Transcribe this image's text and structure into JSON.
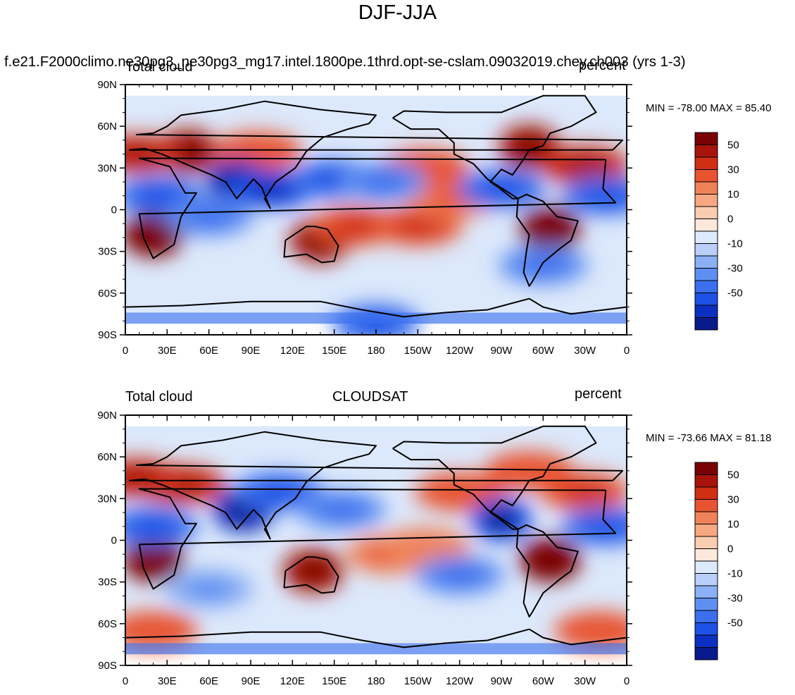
{
  "figure": {
    "title": "DJF-JJA",
    "case_title": "f.e21.F2000climo.ne30pg3_ne30pg3_mg17.intel.1800pe.1thrd.opt-se-cslam.09032019.chey.ch003 (yrs 1-3)"
  },
  "chart_data": [
    {
      "type": "heatmap",
      "panel": "top",
      "left_label": "Total cloud",
      "center_label": "",
      "right_label": "percent",
      "min_max_text": "MIN = -78.00 MAX =  85.40",
      "min": -78.0,
      "max": 85.4,
      "x_ticks": [
        "0",
        "30E",
        "60E",
        "90E",
        "120E",
        "150E",
        "180",
        "150W",
        "120W",
        "90W",
        "60W",
        "30W",
        "0"
      ],
      "y_ticks": [
        "90N",
        "60N",
        "30N",
        "0",
        "30S",
        "60S",
        "90S"
      ],
      "xlim": [
        0,
        360
      ],
      "ylim": [
        -90,
        90
      ],
      "colorbar_labels": [
        "50",
        "30",
        "10",
        "0",
        "-10",
        "-30",
        "-50"
      ],
      "colorbar_levels": [
        -60,
        -50,
        -40,
        -30,
        -20,
        -10,
        -5,
        0,
        5,
        10,
        20,
        30,
        40,
        50,
        60
      ],
      "colorbar_colors": [
        "#0a1a8c",
        "#0b2fc2",
        "#1e52e6",
        "#3a6fee",
        "#5f8ff2",
        "#8cb0f5",
        "#b9cffa",
        "#ddeafc",
        "#fde9dc",
        "#fbcdb0",
        "#f7a882",
        "#f08259",
        "#e85430",
        "#cf2f13",
        "#a8140b",
        "#7a0205"
      ],
      "features": [
        {
          "lon": 20,
          "lat": -18,
          "value": 60
        },
        {
          "lon": 45,
          "lat": 42,
          "value": 55
        },
        {
          "lon": 8,
          "lat": 40,
          "value": 45
        },
        {
          "lon": 95,
          "lat": 42,
          "value": 30
        },
        {
          "lon": 140,
          "lat": -22,
          "value": 50
        },
        {
          "lon": 165,
          "lat": -12,
          "value": 35
        },
        {
          "lon": 210,
          "lat": -12,
          "value": 35
        },
        {
          "lon": 235,
          "lat": 8,
          "value": 25
        },
        {
          "lon": 305,
          "lat": -14,
          "value": 60
        },
        {
          "lon": 290,
          "lat": 45,
          "value": 50
        },
        {
          "lon": 330,
          "lat": 32,
          "value": 45
        },
        {
          "lon": 215,
          "lat": 30,
          "value": 30
        },
        {
          "lon": 80,
          "lat": 20,
          "value": -60
        },
        {
          "lon": 105,
          "lat": 15,
          "value": -45
        },
        {
          "lon": 25,
          "lat": 10,
          "value": -40
        },
        {
          "lon": 150,
          "lat": 22,
          "value": -35
        },
        {
          "lon": 185,
          "lat": 20,
          "value": -30
        },
        {
          "lon": 270,
          "lat": 15,
          "value": -40
        },
        {
          "lon": 345,
          "lat": 10,
          "value": -35
        },
        {
          "lon": 60,
          "lat": -5,
          "value": -30
        },
        {
          "lon": 300,
          "lat": -40,
          "value": -30
        },
        {
          "lon": 180,
          "lat": -82,
          "value": -35
        }
      ]
    },
    {
      "type": "heatmap",
      "panel": "bottom",
      "left_label": "Total cloud",
      "center_label": "CLOUDSAT",
      "right_label": "percent",
      "min_max_text": "MIN = -73.66 MAX =  81.18",
      "min": -73.66,
      "max": 81.18,
      "x_ticks": [
        "0",
        "30E",
        "60E",
        "90E",
        "120E",
        "150E",
        "180",
        "150W",
        "120W",
        "90W",
        "60W",
        "30W",
        "0"
      ],
      "y_ticks": [
        "90N",
        "60N",
        "30N",
        "0",
        "30S",
        "60S",
        "90S"
      ],
      "xlim": [
        0,
        360
      ],
      "ylim": [
        -90,
        90
      ],
      "colorbar_labels": [
        "50",
        "30",
        "10",
        "0",
        "-10",
        "-30",
        "-50"
      ],
      "colorbar_levels": [
        -60,
        -50,
        -40,
        -30,
        -20,
        -10,
        -5,
        0,
        5,
        10,
        20,
        30,
        40,
        50,
        60
      ],
      "colorbar_colors": [
        "#0a1a8c",
        "#0b2fc2",
        "#1e52e6",
        "#3a6fee",
        "#5f8ff2",
        "#8cb0f5",
        "#b9cffa",
        "#ddeafc",
        "#fde9dc",
        "#fbcdb0",
        "#f7a882",
        "#f08259",
        "#e85430",
        "#cf2f13",
        "#a8140b",
        "#7a0205"
      ],
      "features": [
        {
          "lon": 20,
          "lat": -14,
          "value": 60
        },
        {
          "lon": 40,
          "lat": 40,
          "value": 45
        },
        {
          "lon": 8,
          "lat": 45,
          "value": 40
        },
        {
          "lon": 135,
          "lat": -22,
          "value": 50
        },
        {
          "lon": 305,
          "lat": -14,
          "value": 60
        },
        {
          "lon": 330,
          "lat": 35,
          "value": 35
        },
        {
          "lon": 290,
          "lat": 50,
          "value": 30
        },
        {
          "lon": 240,
          "lat": 35,
          "value": 30
        },
        {
          "lon": 190,
          "lat": -10,
          "value": 25
        },
        {
          "lon": 215,
          "lat": -5,
          "value": 20
        },
        {
          "lon": 340,
          "lat": -65,
          "value": 30
        },
        {
          "lon": 20,
          "lat": -65,
          "value": 30
        },
        {
          "lon": 85,
          "lat": 22,
          "value": -60
        },
        {
          "lon": 110,
          "lat": 35,
          "value": -40
        },
        {
          "lon": 20,
          "lat": 10,
          "value": -40
        },
        {
          "lon": 270,
          "lat": 15,
          "value": -50
        },
        {
          "lon": 345,
          "lat": 10,
          "value": -35
        },
        {
          "lon": 155,
          "lat": 22,
          "value": -30
        },
        {
          "lon": 240,
          "lat": -25,
          "value": -30
        },
        {
          "lon": 60,
          "lat": -35,
          "value": -20
        }
      ]
    }
  ]
}
